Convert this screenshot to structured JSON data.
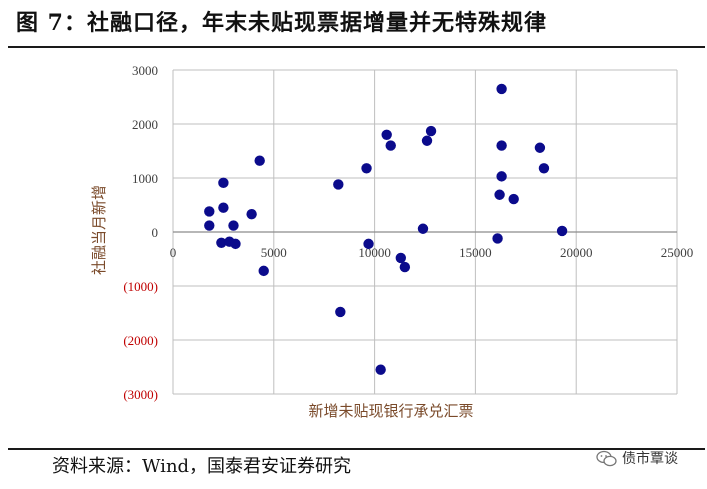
{
  "figure": {
    "title": "图 7：社融口径，年末未贴现票据增量并无特殊规律",
    "source": "资料来源：Wind，国泰君安证券研究",
    "watermark": "债市覃谈"
  },
  "colors": {
    "point": "#0b0b8c",
    "grid": "#bfbfbf",
    "negative_tick": "#c00000",
    "axis_title": "#7a4a2a",
    "tick": "#404040"
  },
  "chart_data": {
    "type": "scatter",
    "title": "",
    "xlabel": "新增未贴现银行承兑汇票",
    "ylabel": "社融当月新增",
    "xlim": [
      0,
      25000
    ],
    "ylim": [
      -3000,
      3000
    ],
    "x_ticks": [
      0,
      5000,
      10000,
      15000,
      20000,
      25000
    ],
    "x_tick_labels": [
      "0",
      "5000",
      "10000",
      "15000",
      "20000",
      "25000"
    ],
    "y_ticks": [
      3000,
      2000,
      1000,
      0,
      -1000,
      -2000,
      -3000
    ],
    "y_tick_labels": [
      "3000",
      "2000",
      "1000",
      "0",
      "(1000)",
      "(2000)",
      "(3000)"
    ],
    "grid": true,
    "legend": "none",
    "points": [
      {
        "x": 1800,
        "y": 380
      },
      {
        "x": 1800,
        "y": 120
      },
      {
        "x": 2500,
        "y": 910
      },
      {
        "x": 2500,
        "y": 450
      },
      {
        "x": 2400,
        "y": -200
      },
      {
        "x": 2800,
        "y": -180
      },
      {
        "x": 3000,
        "y": 120
      },
      {
        "x": 3100,
        "y": -220
      },
      {
        "x": 3900,
        "y": 330
      },
      {
        "x": 4300,
        "y": 1320
      },
      {
        "x": 4500,
        "y": -720
      },
      {
        "x": 8200,
        "y": 880
      },
      {
        "x": 8300,
        "y": -1480
      },
      {
        "x": 9600,
        "y": 1180
      },
      {
        "x": 9700,
        "y": -220
      },
      {
        "x": 10300,
        "y": -2550
      },
      {
        "x": 10600,
        "y": 1800
      },
      {
        "x": 10800,
        "y": 1600
      },
      {
        "x": 11300,
        "y": -480
      },
      {
        "x": 11500,
        "y": -650
      },
      {
        "x": 12400,
        "y": 60
      },
      {
        "x": 12600,
        "y": 1690
      },
      {
        "x": 12800,
        "y": 1870
      },
      {
        "x": 16100,
        "y": -120
      },
      {
        "x": 16200,
        "y": 690
      },
      {
        "x": 16300,
        "y": 2650
      },
      {
        "x": 16300,
        "y": 1600
      },
      {
        "x": 16300,
        "y": 1030
      },
      {
        "x": 16900,
        "y": 610
      },
      {
        "x": 18200,
        "y": 1560
      },
      {
        "x": 18400,
        "y": 1180
      },
      {
        "x": 19300,
        "y": 20
      }
    ]
  }
}
